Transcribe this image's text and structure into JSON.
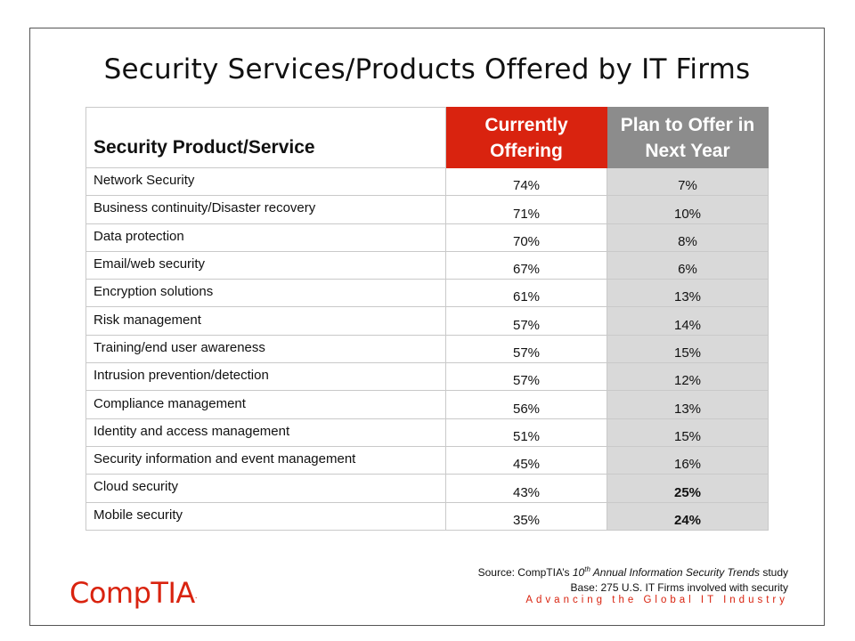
{
  "title": "Security Services/Products Offered by IT Firms",
  "table": {
    "headers": {
      "label": "Security Product/Service",
      "current_line1": "Currently",
      "current_line2": "Offering",
      "plan_line1": "Plan to Offer in",
      "plan_line2": "Next Year"
    },
    "rows": [
      {
        "label": "Network Security",
        "current": "74%",
        "plan": "7%",
        "plan_bold": false
      },
      {
        "label": "Business continuity/Disaster recovery",
        "current": "71%",
        "plan": "10%",
        "plan_bold": false
      },
      {
        "label": "Data protection",
        "current": "70%",
        "plan": "8%",
        "plan_bold": false
      },
      {
        "label": "Email/web security",
        "current": "67%",
        "plan": "6%",
        "plan_bold": false
      },
      {
        "label": "Encryption solutions",
        "current": "61%",
        "plan": "13%",
        "plan_bold": false
      },
      {
        "label": "Risk management",
        "current": "57%",
        "plan": "14%",
        "plan_bold": false
      },
      {
        "label": "Training/end user awareness",
        "current": "57%",
        "plan": "15%",
        "plan_bold": false
      },
      {
        "label": "Intrusion prevention/detection",
        "current": "57%",
        "plan": "12%",
        "plan_bold": false
      },
      {
        "label": "Compliance management",
        "current": "56%",
        "plan": "13%",
        "plan_bold": false
      },
      {
        "label": "Identity and access management",
        "current": "51%",
        "plan": "15%",
        "plan_bold": false
      },
      {
        "label": "Security information and event management",
        "current": "45%",
        "plan": "16%",
        "plan_bold": false
      },
      {
        "label": "Cloud security",
        "current": "43%",
        "plan": "25%",
        "plan_bold": true
      },
      {
        "label": "Mobile security",
        "current": "35%",
        "plan": "24%",
        "plan_bold": true
      }
    ]
  },
  "source": {
    "prefix": "Source: CompTIA’s ",
    "edition_num": "10",
    "edition_sup": "th",
    "report": " Annual Information Security Trends",
    "suffix": " study",
    "base": "Base: 275 U.S. IT Firms involved with security"
  },
  "tagline": "Advancing the Global IT Industry",
  "logo": {
    "text": "CompTIA",
    "mark": "."
  },
  "colors": {
    "accent_red": "#d9230f",
    "header_gray": "#8c8c8c",
    "cell_gray": "#d9d9d9"
  }
}
